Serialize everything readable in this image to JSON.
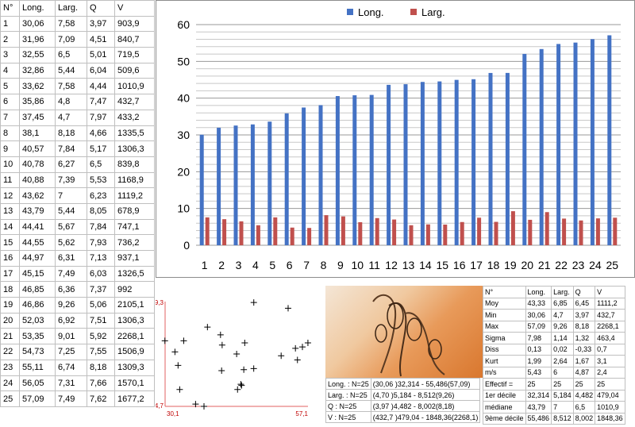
{
  "table": {
    "headers": [
      "N°",
      "Long.",
      "Larg.",
      "Q",
      "V"
    ],
    "rows": [
      [
        "1",
        "30,06",
        "7,58",
        "3,97",
        "903,9"
      ],
      [
        "2",
        "31,96",
        "7,09",
        "4,51",
        "840,7"
      ],
      [
        "3",
        "32,55",
        "6,5",
        "5,01",
        "719,5"
      ],
      [
        "4",
        "32,86",
        "5,44",
        "6,04",
        "509,6"
      ],
      [
        "5",
        "33,62",
        "7,58",
        "4,44",
        "1010,9"
      ],
      [
        "6",
        "35,86",
        "4,8",
        "7,47",
        "432,7"
      ],
      [
        "7",
        "37,45",
        "4,7",
        "7,97",
        "433,2"
      ],
      [
        "8",
        "38,1",
        "8,18",
        "4,66",
        "1335,5"
      ],
      [
        "9",
        "40,57",
        "7,84",
        "5,17",
        "1306,3"
      ],
      [
        "10",
        "40,78",
        "6,27",
        "6,5",
        "839,8"
      ],
      [
        "11",
        "40,88",
        "7,39",
        "5,53",
        "1168,9"
      ],
      [
        "12",
        "43,62",
        "7",
        "6,23",
        "1119,2"
      ],
      [
        "13",
        "43,79",
        "5,44",
        "8,05",
        "678,9"
      ],
      [
        "14",
        "44,41",
        "5,67",
        "7,84",
        "747,1"
      ],
      [
        "15",
        "44,55",
        "5,62",
        "7,93",
        "736,2"
      ],
      [
        "16",
        "44,97",
        "6,31",
        "7,13",
        "937,1"
      ],
      [
        "17",
        "45,15",
        "7,49",
        "6,03",
        "1326,5"
      ],
      [
        "18",
        "46,85",
        "6,36",
        "7,37",
        "992"
      ],
      [
        "19",
        "46,86",
        "9,26",
        "5,06",
        "2105,1"
      ],
      [
        "20",
        "52,03",
        "6,92",
        "7,51",
        "1306,3"
      ],
      [
        "21",
        "53,35",
        "9,01",
        "5,92",
        "2268,1"
      ],
      [
        "22",
        "54,73",
        "7,25",
        "7,55",
        "1506,9"
      ],
      [
        "23",
        "55,11",
        "6,74",
        "8,18",
        "1309,3"
      ],
      [
        "24",
        "56,05",
        "7,31",
        "7,66",
        "1570,1"
      ],
      [
        "25",
        "57,09",
        "7,49",
        "7,62",
        "1677,2"
      ]
    ]
  },
  "chart_data": [
    {
      "type": "bar",
      "categories": [
        "1",
        "2",
        "3",
        "4",
        "5",
        "6",
        "7",
        "8",
        "9",
        "10",
        "11",
        "12",
        "13",
        "14",
        "15",
        "16",
        "17",
        "18",
        "19",
        "20",
        "21",
        "22",
        "23",
        "24",
        "25"
      ],
      "series": [
        {
          "name": "Long.",
          "color": "#4472c4",
          "values": [
            30.06,
            31.96,
            32.55,
            32.86,
            33.62,
            35.86,
            37.45,
            38.1,
            40.57,
            40.78,
            40.88,
            43.62,
            43.79,
            44.41,
            44.55,
            44.97,
            45.15,
            46.85,
            46.86,
            52.03,
            53.35,
            54.73,
            55.11,
            56.05,
            57.09
          ]
        },
        {
          "name": "Larg.",
          "color": "#c0504d",
          "values": [
            7.58,
            7.09,
            6.5,
            5.44,
            7.58,
            4.8,
            4.7,
            8.18,
            7.84,
            6.27,
            7.39,
            7,
            5.44,
            5.67,
            5.62,
            6.31,
            7.49,
            6.36,
            9.26,
            6.92,
            9.01,
            7.25,
            6.74,
            7.31,
            7.49
          ]
        }
      ],
      "ylim": [
        0,
        60
      ],
      "yticks": [
        "0",
        "10",
        "20",
        "30",
        "40",
        "50",
        "60"
      ],
      "grid": true,
      "legend": "top"
    },
    {
      "type": "scatter",
      "x": [
        30.06,
        31.96,
        32.55,
        32.86,
        33.62,
        35.86,
        37.45,
        38.1,
        40.57,
        40.78,
        40.88,
        43.62,
        43.79,
        44.41,
        44.55,
        44.97,
        45.15,
        46.85,
        46.86,
        52.03,
        53.35,
        54.73,
        55.11,
        56.05,
        57.09
      ],
      "y": [
        7.58,
        7.09,
        6.5,
        5.44,
        7.58,
        4.8,
        4.7,
        8.18,
        7.84,
        6.27,
        7.39,
        7,
        5.44,
        5.67,
        5.62,
        6.31,
        7.49,
        6.36,
        9.26,
        6.92,
        9.01,
        7.25,
        6.74,
        7.31,
        7.49
      ],
      "xlim": [
        30.1,
        57.1
      ],
      "ylim": [
        4.7,
        9.3
      ],
      "x_min_label": "30,1",
      "x_max_label": "57,1",
      "y_min_label": "4,7",
      "y_max_label": "9,3"
    }
  ],
  "summary_rows": [
    [
      "Long. : N=25",
      "(30,06 )32,314 - 55,486(57,09)"
    ],
    [
      "Larg. : N=25",
      "(4,70 )5,184 - 8,512(9,26)"
    ],
    [
      "Q : N=25",
      "(3,97 )4,482 - 8,002(8,18)"
    ],
    [
      "V : N=25",
      "(432,7 )479,04 - 1848,36(2268,1)"
    ]
  ],
  "stats": {
    "headers": [
      "N°",
      "Long.",
      "Larg.",
      "Q",
      "V"
    ],
    "rows": [
      [
        "Moy",
        "43,33",
        "6,85",
        "6,45",
        "1111,2"
      ],
      [
        "Min",
        "30,06",
        "4,7",
        "3,97",
        "432,7"
      ],
      [
        "Max",
        "57,09",
        "9,26",
        "8,18",
        "2268,1"
      ],
      [
        "Sigma",
        "7,98",
        "1,14",
        "1,32",
        "463,4"
      ],
      [
        "Diss",
        "0,13",
        "0,02",
        "-0,33",
        "0,7"
      ],
      [
        "Kurt",
        "1,99",
        "2,64",
        "1,67",
        "3,1"
      ],
      [
        "m/s",
        "5,43",
        "6",
        "4,87",
        "2,4"
      ],
      [
        "Effectif =",
        "25",
        "25",
        "25",
        "25"
      ],
      [
        "1er décile",
        "32,314",
        "5,184",
        "4,482",
        "479,04"
      ],
      [
        "médiane",
        "43,79",
        "7",
        "6,5",
        "1010,9"
      ],
      [
        "9ème décile",
        "55,486",
        "8,512",
        "8,002",
        "1848,36"
      ]
    ]
  }
}
